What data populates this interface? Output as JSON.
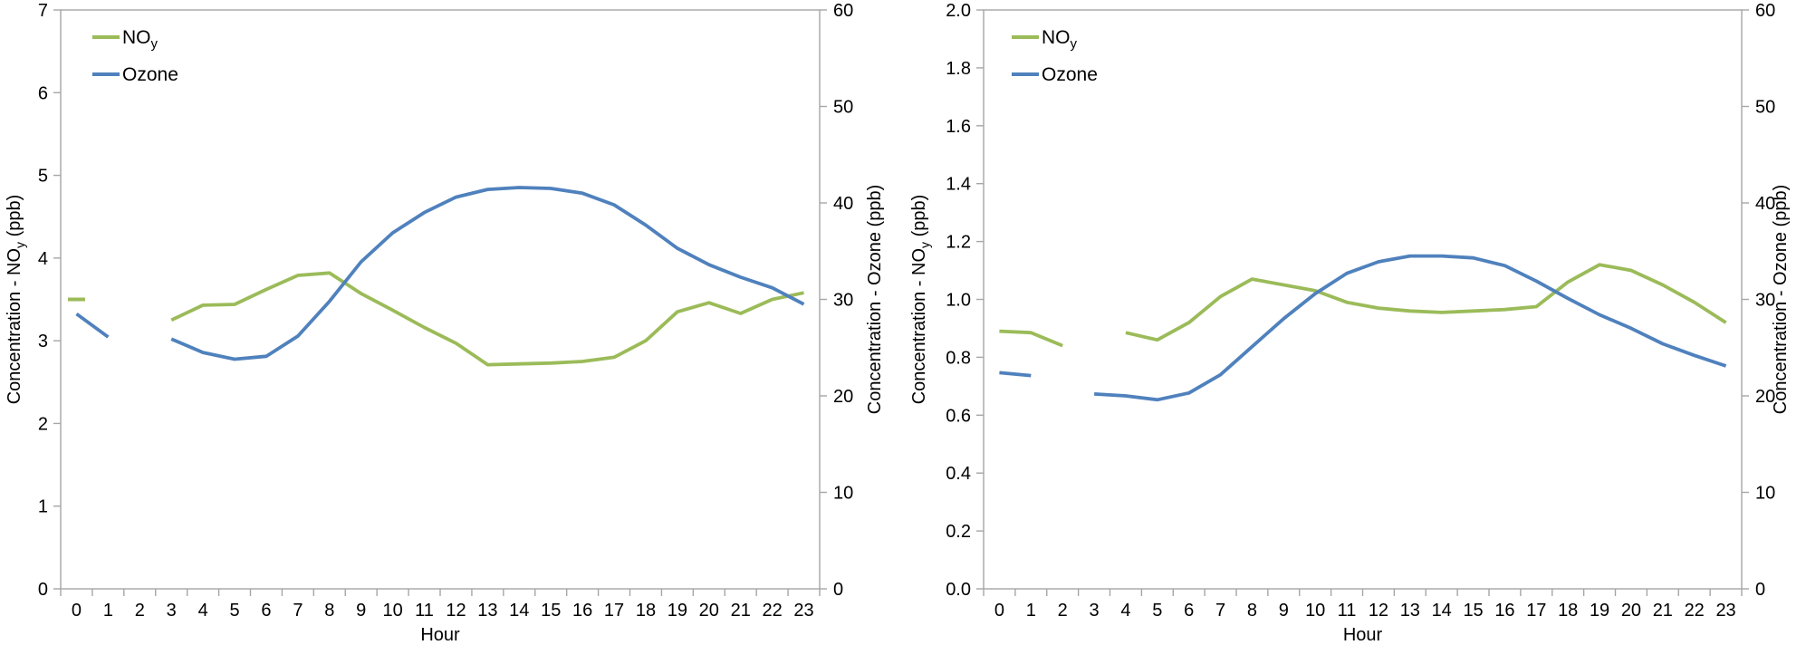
{
  "colors": {
    "noy_green": "#9BBB59",
    "ozone_blue": "#4F81BD",
    "axis_line": "#A6A6A6",
    "text": "#000000",
    "background": "#FFFFFF"
  },
  "chart_data": [
    {
      "type": "line",
      "title": "",
      "x_axis": {
        "title": "Hour",
        "tick_labels": [
          "0",
          "1",
          "2",
          "3",
          "4",
          "5",
          "6",
          "7",
          "8",
          "9",
          "10",
          "11",
          "12",
          "13",
          "14",
          "15",
          "16",
          "17",
          "18",
          "19",
          "20",
          "21",
          "22",
          "23"
        ]
      },
      "y_axis_left": {
        "title": "Concentration - NOy (ppb)",
        "title_parts": {
          "pre": "Concentration - NO",
          "sub": "y",
          "post": " (ppb)"
        },
        "min": 0,
        "max": 7,
        "tick_labels": [
          "0",
          "1",
          "2",
          "3",
          "4",
          "5",
          "6",
          "7"
        ]
      },
      "y_axis_right": {
        "title": "Concentration - Ozone (ppb)",
        "title_parts": {
          "pre": "Concentration - Ozone (ppb)",
          "sub": "",
          "post": ""
        },
        "min": 0,
        "max": 60,
        "tick_labels": [
          "0",
          "10",
          "20",
          "30",
          "40",
          "50",
          "60"
        ]
      },
      "legend": {
        "position": "top-left",
        "entries": [
          {
            "label": "NOy",
            "label_parts": {
              "pre": "NO",
              "sub": "y"
            },
            "color": "#9BBB59"
          },
          {
            "label": "Ozone",
            "label_parts": {
              "pre": "Ozone",
              "sub": ""
            },
            "color": "#4F81BD"
          }
        ]
      },
      "series": [
        {
          "name": "NOy",
          "axis": "left",
          "color": "#9BBB59",
          "values": [
            3.5,
            null,
            null,
            3.25,
            3.43,
            3.44,
            3.62,
            3.79,
            3.82,
            3.57,
            3.37,
            3.16,
            2.97,
            2.71,
            2.72,
            2.73,
            2.75,
            2.8,
            3.0,
            3.35,
            3.46,
            3.33,
            3.5,
            3.58
          ]
        },
        {
          "name": "Ozone",
          "axis": "right",
          "color": "#4F81BD",
          "values": [
            28.5,
            26.1,
            null,
            25.9,
            24.5,
            23.8,
            24.1,
            26.2,
            29.8,
            33.9,
            36.9,
            39.0,
            40.6,
            41.4,
            41.6,
            41.5,
            41.0,
            39.8,
            37.7,
            35.3,
            33.6,
            32.3,
            31.2,
            29.5
          ]
        }
      ]
    },
    {
      "type": "line",
      "title": "",
      "x_axis": {
        "title": "Hour",
        "tick_labels": [
          "0",
          "1",
          "2",
          "3",
          "4",
          "5",
          "6",
          "7",
          "8",
          "9",
          "10",
          "11",
          "12",
          "13",
          "14",
          "15",
          "16",
          "17",
          "18",
          "19",
          "20",
          "21",
          "22",
          "23"
        ]
      },
      "y_axis_left": {
        "title": "Concentration - NOy (ppb)",
        "title_parts": {
          "pre": "Concentration - NO",
          "sub": "y",
          "post": " (ppb)"
        },
        "min": 0,
        "max": 2,
        "tick_labels": [
          "0.0",
          "0.2",
          "0.4",
          "0.6",
          "0.8",
          "1.0",
          "1.2",
          "1.4",
          "1.6",
          "1.8",
          "2.0"
        ]
      },
      "y_axis_right": {
        "title": "Concentration - Ozone (ppb)",
        "title_parts": {
          "pre": "Concentration - Ozone (ppb)",
          "sub": "",
          "post": ""
        },
        "min": 0,
        "max": 60,
        "tick_labels": [
          "0",
          "10",
          "20",
          "30",
          "40",
          "50",
          "60"
        ]
      },
      "legend": {
        "position": "top-left",
        "entries": [
          {
            "label": "NOy",
            "label_parts": {
              "pre": "NO",
              "sub": "y"
            },
            "color": "#9BBB59"
          },
          {
            "label": "Ozone",
            "label_parts": {
              "pre": "Ozone",
              "sub": ""
            },
            "color": "#4F81BD"
          }
        ]
      },
      "series": [
        {
          "name": "NOy",
          "axis": "left",
          "color": "#9BBB59",
          "values": [
            0.89,
            0.885,
            0.84,
            null,
            0.885,
            0.86,
            0.92,
            1.01,
            1.07,
            1.05,
            1.03,
            0.99,
            0.97,
            0.96,
            0.955,
            0.96,
            0.965,
            0.975,
            1.06,
            1.12,
            1.1,
            1.05,
            0.99,
            0.92
          ]
        },
        {
          "name": "Ozone",
          "axis": "right",
          "color": "#4F81BD",
          "values": [
            22.4,
            22.1,
            null,
            20.2,
            20.0,
            19.6,
            20.3,
            22.2,
            25.1,
            28.0,
            30.6,
            32.7,
            33.9,
            34.5,
            34.5,
            34.3,
            33.5,
            31.9,
            30.1,
            28.4,
            27.0,
            25.4,
            24.2,
            23.1
          ]
        }
      ]
    }
  ]
}
